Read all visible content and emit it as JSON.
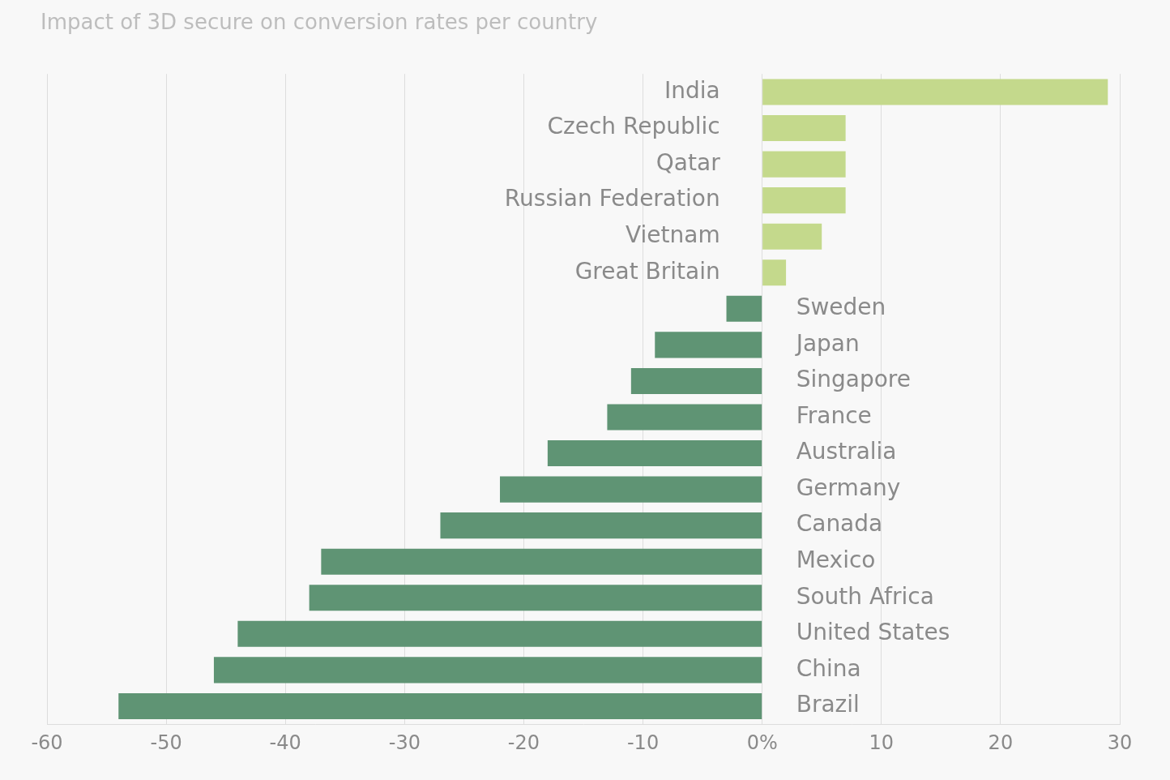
{
  "chart_data": {
    "type": "bar",
    "orientation": "horizontal",
    "title": "Impact of 3D secure on conversion rates per country",
    "categories": [
      "India",
      "Czech Republic",
      "Qatar",
      "Russian Federation",
      "Vietnam",
      "Great Britain",
      "Sweden",
      "Japan",
      "Singapore",
      "France",
      "Australia",
      "Germany",
      "Canada",
      "Mexico",
      "South Africa",
      "United States",
      "China",
      "Brazil"
    ],
    "values": [
      29,
      7,
      7,
      7,
      5,
      2,
      -3,
      -9,
      -11,
      -13,
      -18,
      -22,
      -27,
      -37,
      -38,
      -44,
      -46,
      -54
    ],
    "colors": [
      "#c4d98c",
      "#c4d98c",
      "#c4d98c",
      "#c4d98c",
      "#c4d98c",
      "#c4d98c",
      "#5f9474",
      "#5f9474",
      "#5f9474",
      "#5f9474",
      "#5f9474",
      "#5f9474",
      "#5f9474",
      "#5f9474",
      "#5f9474",
      "#5f9474",
      "#5f9474",
      "#5f9474"
    ],
    "xlim": [
      -60,
      30
    ],
    "xticks": [
      -60,
      -50,
      -40,
      -30,
      -20,
      -10,
      {
        "value": 0,
        "label": "0%"
      },
      10,
      20,
      30
    ],
    "grid": true,
    "tick_labels": "x"
  }
}
